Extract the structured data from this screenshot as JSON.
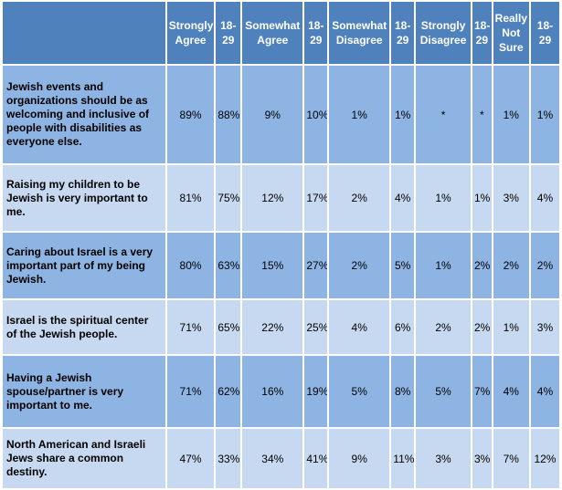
{
  "chart_data": {
    "type": "table",
    "columns": [
      "Strongly Agree",
      "18-29",
      "Somewhat Agree",
      "18-29",
      "Somewhat Disagree",
      "18-29",
      "Strongly Disagree",
      "18-29",
      "Really Not Sure",
      "18-29"
    ],
    "rows": [
      {
        "label": "Jewish events and organizations should be as welcoming and inclusive of people with disabilities as everyone else.",
        "cells": [
          "89%",
          "88%",
          "9%",
          "10%",
          "1%",
          "1%",
          "*",
          "*",
          "1%",
          "1%"
        ]
      },
      {
        "label": "Raising my children to be Jewish is very important to me.",
        "cells": [
          "81%",
          "75%",
          "12%",
          "17%",
          "2%",
          "4%",
          "1%",
          "1%",
          "3%",
          "4%"
        ]
      },
      {
        "label": "Caring about Israel is a very important part of my being Jewish.",
        "cells": [
          "80%",
          "63%",
          "15%",
          "27%",
          "2%",
          "5%",
          "1%",
          "2%",
          "2%",
          "2%"
        ]
      },
      {
        "label": "Israel is the spiritual center of the Jewish people.",
        "cells": [
          "71%",
          "65%",
          "22%",
          "25%",
          "4%",
          "6%",
          "2%",
          "2%",
          "1%",
          "3%"
        ]
      },
      {
        "label": "Having a Jewish spouse/partner is very important to me.",
        "cells": [
          "71%",
          "62%",
          "16%",
          "19%",
          "5%",
          "8%",
          "5%",
          "7%",
          "4%",
          "4%"
        ]
      },
      {
        "label": "North American and Israeli Jews share a common destiny.",
        "cells": [
          "47%",
          "33%",
          "34%",
          "41%",
          "9%",
          "11%",
          "3%",
          "3%",
          "7%",
          "12%"
        ]
      }
    ]
  },
  "colors": {
    "header": "#4f81bd",
    "row_dark": "#8eb4e3",
    "row_light": "#c6d9f1"
  }
}
